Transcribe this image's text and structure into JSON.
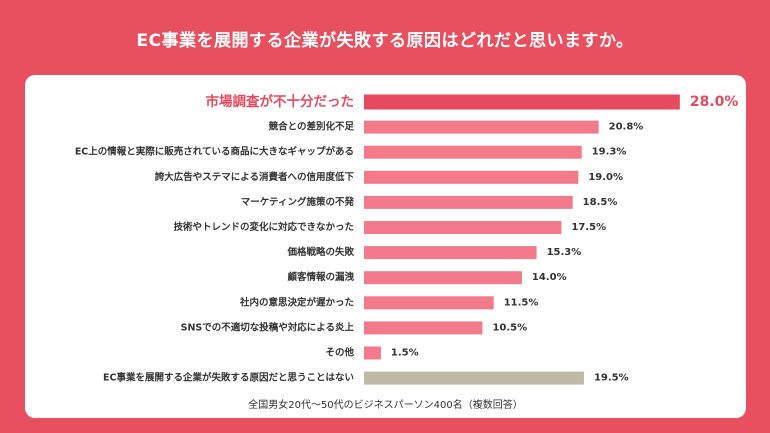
{
  "header": {
    "title": "EC事業を展開する企業が失敗する原因はどれだと思いますか。"
  },
  "footnote": "全国男女20代〜50代のビジネスパーソン400名（複数回答）",
  "colors": {
    "background": "#e8505f",
    "highlight_bar": "#e54a5e",
    "bar": "#f27a8a",
    "neutral_bar": "#bfbaa8",
    "highlight_text": "#e54a5e",
    "label_text": "#333333"
  },
  "chart_data": {
    "type": "bar",
    "orientation": "horizontal",
    "title": "EC事業を展開する企業が失敗する原因はどれだと思いますか。",
    "unit": "%",
    "xlim": [
      0,
      30
    ],
    "grid": false,
    "categories": [
      "市場調査が不十分だった",
      "競合との差別化不足",
      "EC上の情報と実際に販売されている商品に大きなギャップがある",
      "誇大広告やステマによる消費者への信用度低下",
      "マーケティング施策の不発",
      "技術やトレンドの変化に対応できなかった",
      "価格戦略の失敗",
      "顧客情報の漏洩",
      "社内の意思決定が遅かった",
      "SNSでの不適切な投稿や対応による炎上",
      "その他",
      "EC事業を展開する企業が失敗する原因だと思うことはない"
    ],
    "values": [
      28.0,
      20.8,
      19.3,
      19.0,
      18.5,
      17.5,
      15.3,
      14.0,
      11.5,
      10.5,
      1.5,
      19.5
    ],
    "value_labels": [
      "28.0%",
      "20.8%",
      "19.3%",
      "19.0%",
      "18.5%",
      "17.5%",
      "15.3%",
      "14.0%",
      "11.5%",
      "10.5%",
      "1.5%",
      "19.5%"
    ],
    "bar_styles": [
      "highlight",
      "normal",
      "normal",
      "normal",
      "normal",
      "normal",
      "normal",
      "normal",
      "normal",
      "normal",
      "normal",
      "neutral"
    ]
  }
}
